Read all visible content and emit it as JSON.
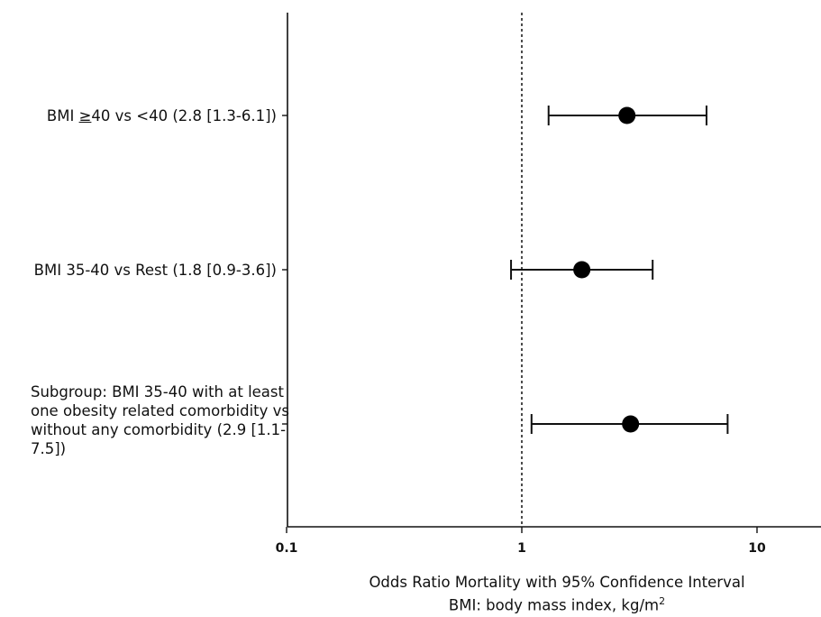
{
  "chart_data": {
    "type": "forest",
    "x_scale": "log",
    "xlim": [
      0.1,
      20
    ],
    "x_ticks": [
      "0.1",
      "1",
      "10"
    ],
    "x_tick_values": [
      0.1,
      1,
      10
    ],
    "reference_line": 1,
    "xlabel_line1": "Odds Ratio Mortality with 95% Confidence Interval",
    "xlabel_line2_prefix": "BMI: body mass index, kg/m",
    "xlabel_line2_sup": "2",
    "rows": [
      {
        "label_html_prefix": "BMI ",
        "label_ge": "≥",
        "label_rest": "40 vs <40 (2.8 [1.3-6.1])",
        "or": 2.8,
        "ci_low": 1.3,
        "ci_high": 6.1
      },
      {
        "label": "BMI 35-40 vs Rest (1.8 [0.9-3.6])",
        "or": 1.8,
        "ci_low": 0.9,
        "ci_high": 3.6
      },
      {
        "label": "Subgroup: BMI 35-40 with at least one obesity related comorbidity vs without any comorbidity (2.9 [1.1-7.5])",
        "or": 2.9,
        "ci_low": 1.1,
        "ci_high": 7.5
      }
    ]
  }
}
